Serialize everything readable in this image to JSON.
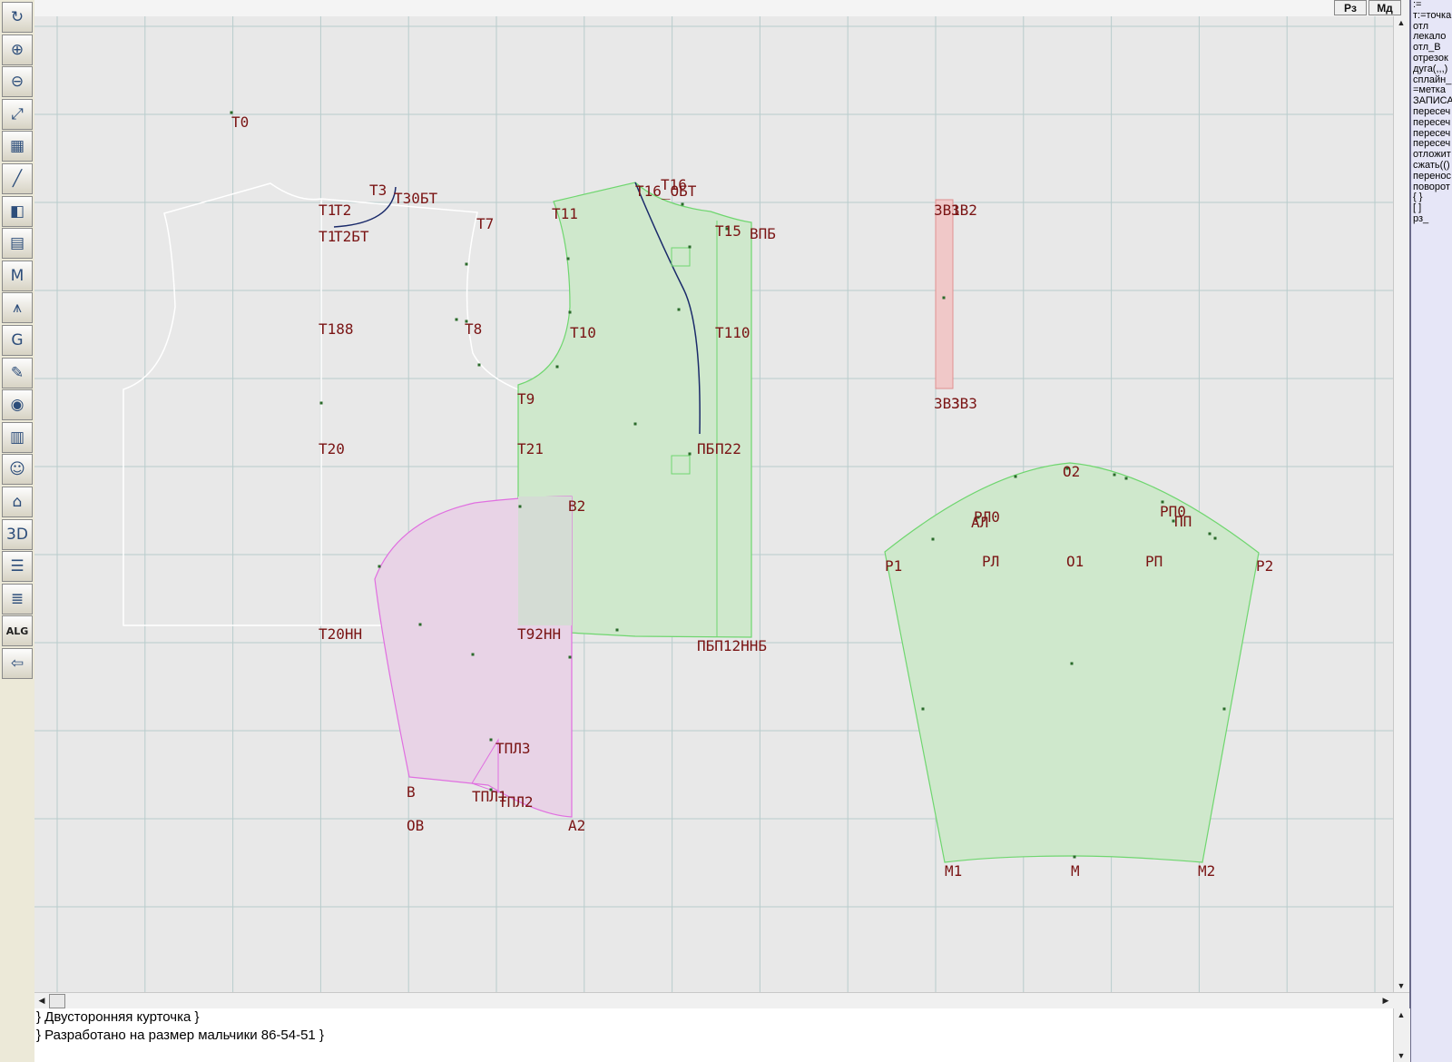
{
  "toolbar": {
    "tools": [
      {
        "icon": "refresh-icon",
        "glyph": "↻"
      },
      {
        "icon": "zoom-in-icon",
        "glyph": "⊕"
      },
      {
        "icon": "zoom-out-icon",
        "glyph": "⊖"
      },
      {
        "icon": "zoom-fit-icon",
        "glyph": "⤢"
      },
      {
        "icon": "grid-icon",
        "glyph": "▦"
      },
      {
        "icon": "line-tool-icon",
        "glyph": "╱"
      },
      {
        "icon": "pattern-piece-icon",
        "glyph": "◧"
      },
      {
        "icon": "pattern-list-icon",
        "glyph": "▤"
      },
      {
        "icon": "measurements-icon",
        "glyph": "M"
      },
      {
        "icon": "compass-icon",
        "glyph": "⩚"
      },
      {
        "icon": "gradation-icon",
        "glyph": "G"
      },
      {
        "icon": "notebook-icon",
        "glyph": "✎"
      },
      {
        "icon": "camera-icon",
        "glyph": "◉"
      },
      {
        "icon": "table-icon",
        "glyph": "▥"
      },
      {
        "icon": "avatar-icon",
        "glyph": "☺"
      },
      {
        "icon": "garment-sketch-icon",
        "glyph": "⌂"
      },
      {
        "icon": "3d-view-icon",
        "glyph": "3D"
      },
      {
        "icon": "document-icon",
        "glyph": "☰"
      },
      {
        "icon": "layers-icon",
        "glyph": "≣"
      },
      {
        "icon": "algorithm-icon",
        "glyph": "ALG"
      },
      {
        "icon": "exit-icon",
        "glyph": "⇦"
      }
    ]
  },
  "topbar": {
    "rz_label": "Рз",
    "md_label": "Мд"
  },
  "command_panel": {
    "commands": [
      ":=",
      "т:=точка",
      "отл",
      "лекало",
      "отл_В",
      "отрезок",
      "дуга(,,,)",
      "сплайн_",
      "=метка",
      "ЗАПИСА",
      "пересеч",
      "пересеч",
      "пересеч",
      "пересеч",
      "отложит",
      "сжать(()",
      "перенос",
      "поворот",
      "{ }",
      "[ ]",
      "рз_"
    ]
  },
  "console": {
    "lines": [
      "} Двусторонняя курточка }",
      "} Разработано на размер мальчики 86-54-51 }"
    ]
  },
  "canvas": {
    "colors": {
      "background": "#e8e8e8",
      "grid": "#b8cccc",
      "front_fill": "#cfe8cc",
      "front_stroke": "#6fd66f",
      "sleeve_fill": "#e8d3e6",
      "sleeve_stroke": "#e06fe0",
      "strip_fill": "#f0c8c8",
      "strip_stroke": "#e09090",
      "back_outline": "#ffffff",
      "label": "#7a1414"
    },
    "labels": [
      {
        "id": "T0",
        "text": "Т0"
      },
      {
        "id": "T1",
        "text": "Т1"
      },
      {
        "id": "T2",
        "text": "Т2"
      },
      {
        "id": "T3",
        "text": "Т3"
      },
      {
        "id": "T30BT",
        "text": "Т30БТ"
      },
      {
        "id": "T7",
        "text": "Т7"
      },
      {
        "id": "T1BT",
        "text": "Т1"
      },
      {
        "id": "T2BT",
        "text": "Т2БТ"
      },
      {
        "id": "T188",
        "text": "Т188"
      },
      {
        "id": "T8",
        "text": "Т8"
      },
      {
        "id": "T20",
        "text": "Т20"
      },
      {
        "id": "T20NN",
        "text": "Т20НН"
      },
      {
        "id": "T11",
        "text": "Т11"
      },
      {
        "id": "T16",
        "text": "Т16"
      },
      {
        "id": "T16BT",
        "text": "Т16_ОБТ"
      },
      {
        "id": "T15",
        "text": "Т15"
      },
      {
        "id": "VPB",
        "text": "ВПБ"
      },
      {
        "id": "T10",
        "text": "Т10"
      },
      {
        "id": "T110",
        "text": "Т110"
      },
      {
        "id": "T9",
        "text": "Т9"
      },
      {
        "id": "T21",
        "text": "Т21"
      },
      {
        "id": "PB",
        "text": "ПБ"
      },
      {
        "id": "T22",
        "text": "П22"
      },
      {
        "id": "T92NN",
        "text": "Т92НН"
      },
      {
        "id": "PBNN",
        "text": "ПБП12ННБ"
      },
      {
        "id": "V2",
        "text": "В2"
      },
      {
        "id": "TPL3",
        "text": "ТПЛ3"
      },
      {
        "id": "TPL1",
        "text": "ТПЛ1"
      },
      {
        "id": "TPL2",
        "text": "ТПЛ2"
      },
      {
        "id": "B",
        "text": "В"
      },
      {
        "id": "OV",
        "text": "ОВ"
      },
      {
        "id": "A2",
        "text": "А2"
      },
      {
        "id": "ZV1",
        "text": "ЗВ1"
      },
      {
        "id": "ZV2",
        "text": "ЗВ2"
      },
      {
        "id": "ZV3a",
        "text": "ЗВ3"
      },
      {
        "id": "ZV3",
        "text": "ЗВ3"
      },
      {
        "id": "O2",
        "text": "О2"
      },
      {
        "id": "RL0",
        "text": "РЛ0"
      },
      {
        "id": "AL",
        "text": "АЛ"
      },
      {
        "id": "RP0",
        "text": "РП0"
      },
      {
        "id": "PP",
        "text": "ПП"
      },
      {
        "id": "P1",
        "text": "Р1"
      },
      {
        "id": "RL",
        "text": "РЛ"
      },
      {
        "id": "O1",
        "text": "О1"
      },
      {
        "id": "RP",
        "text": "РП"
      },
      {
        "id": "P2",
        "text": "Р2"
      },
      {
        "id": "M1",
        "text": "М1"
      },
      {
        "id": "M",
        "text": "М"
      },
      {
        "id": "M2",
        "text": "М2"
      }
    ]
  }
}
